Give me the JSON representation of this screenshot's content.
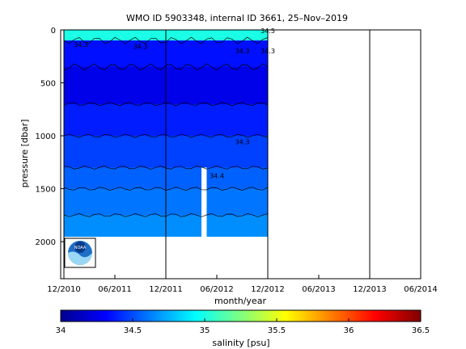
{
  "chart_data": {
    "type": "heatmap",
    "title": "WMO ID 5903348, internal ID 3661, 25–Nov–2019",
    "xlabel": "month/year",
    "ylabel": "pressure [dbar]",
    "x_ticks": [
      "12/2010",
      "06/2011",
      "12/2011",
      "06/2012",
      "12/2012",
      "06/2013",
      "12/2013",
      "06/2014"
    ],
    "y_ticks": [
      "0",
      "500",
      "1000",
      "1500",
      "2000"
    ],
    "y_range_dbar": [
      0,
      2350
    ],
    "y_reversed": true,
    "colorbar": {
      "label": "salinity [psu]",
      "ticks": [
        "34",
        "34.5",
        "35",
        "35.5",
        "36",
        "36.5"
      ],
      "range": [
        34,
        36.5
      ],
      "colormap": "jet"
    },
    "data_time_range": [
      "12/2010",
      "12/2012"
    ],
    "data_gap": [
      "04/2012",
      "05/2012"
    ],
    "salinity_layers": [
      {
        "pressure_top": 0,
        "pressure_bottom": 100,
        "salinity": 35.0
      },
      {
        "pressure_top": 100,
        "pressure_bottom": 350,
        "salinity": 34.35
      },
      {
        "pressure_top": 350,
        "pressure_bottom": 700,
        "salinity": 34.25
      },
      {
        "pressure_top": 700,
        "pressure_bottom": 1000,
        "salinity": 34.38
      },
      {
        "pressure_top": 1000,
        "pressure_bottom": 1300,
        "salinity": 34.47
      },
      {
        "pressure_top": 1300,
        "pressure_bottom": 1500,
        "salinity": 34.55
      },
      {
        "pressure_top": 1500,
        "pressure_bottom": 1750,
        "salinity": 34.6
      },
      {
        "pressure_top": 1750,
        "pressure_bottom": 1950,
        "salinity": 34.66
      }
    ],
    "contour_labels": [
      {
        "text": "34.5",
        "month": "12/2012",
        "pressure": 30
      },
      {
        "text": "34.3",
        "month": "02/2011",
        "pressure": 160
      },
      {
        "text": "34.3",
        "month": "09/2011",
        "pressure": 180
      },
      {
        "text": "34.3",
        "month": "09/2012",
        "pressure": 220
      },
      {
        "text": "34.3",
        "month": "12/2012",
        "pressure": 220
      },
      {
        "text": "34.3",
        "month": "09/2012",
        "pressure": 1080
      },
      {
        "text": "34.4",
        "month": "06/2012",
        "pressure": 1400
      }
    ],
    "grid": false,
    "legend": "colorbar bottom"
  },
  "logo": {
    "text": "NOAA"
  }
}
